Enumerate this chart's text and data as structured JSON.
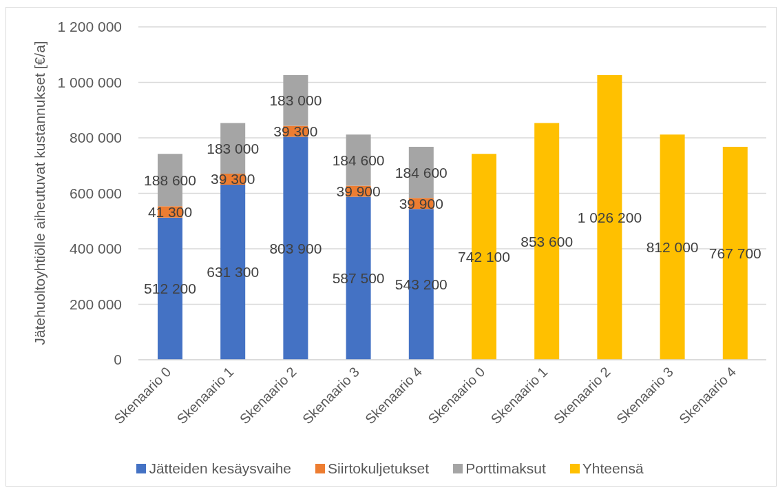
{
  "chart_data": {
    "type": "bar",
    "categories": [
      "Skenaario 0",
      "Skenaario 1",
      "Skenaario 2",
      "Skenaario 3",
      "Skenaario 4",
      "Skenaario 0",
      "Skenaario 1",
      "Skenaario 2",
      "Skenaario 3",
      "Skenaario 4"
    ],
    "ylabel": "Jätehuoltoyhtiölle aiheutuvat kustannukset [€/a]",
    "ylim": [
      0,
      1200000
    ],
    "yticks": [
      0,
      {
        "value": 200000,
        "label": "200 000"
      },
      {
        "value": 400000,
        "label": "400 000"
      },
      {
        "value": 600000,
        "label": "600 000"
      },
      {
        "value": 800000,
        "label": "800 000"
      },
      {
        "value": 1000000,
        "label": "1 000 000"
      },
      {
        "value": 1200000,
        "label": "1 200 000"
      }
    ],
    "stacked": true,
    "grid": "y",
    "legend": "bottom",
    "series": [
      {
        "name": "Jätteiden kesäysvaihe",
        "color": "#4472c4",
        "values": [
          512200,
          631300,
          803900,
          587500,
          543200,
          null,
          null,
          null,
          null,
          null
        ],
        "value_labels": [
          "512 200",
          "631 300",
          "803 900",
          "587 500",
          "543 200",
          null,
          null,
          null,
          null,
          null
        ]
      },
      {
        "name": "Siirtokuljetukset",
        "color": "#ed7d31",
        "values": [
          41300,
          39300,
          39300,
          39900,
          39900,
          null,
          null,
          null,
          null,
          null
        ],
        "value_labels": [
          "41 300",
          "39 300",
          "39 300",
          "39 900",
          "39 900",
          null,
          null,
          null,
          null,
          null
        ]
      },
      {
        "name": "Porttimaksut",
        "color": "#a5a5a5",
        "values": [
          188600,
          183000,
          183000,
          184600,
          184600,
          null,
          null,
          null,
          null,
          null
        ],
        "value_labels": [
          "188 600",
          "183 000",
          "183 000",
          "184 600",
          "184 600",
          null,
          null,
          null,
          null,
          null
        ]
      },
      {
        "name": "Yhteensä",
        "color": "#ffc000",
        "values": [
          null,
          null,
          null,
          null,
          null,
          742100,
          853600,
          1026200,
          812000,
          767700
        ],
        "value_labels": [
          null,
          null,
          null,
          null,
          null,
          "742 100",
          "853 600",
          "1 026 200",
          "812 000",
          "767 700"
        ]
      }
    ]
  }
}
